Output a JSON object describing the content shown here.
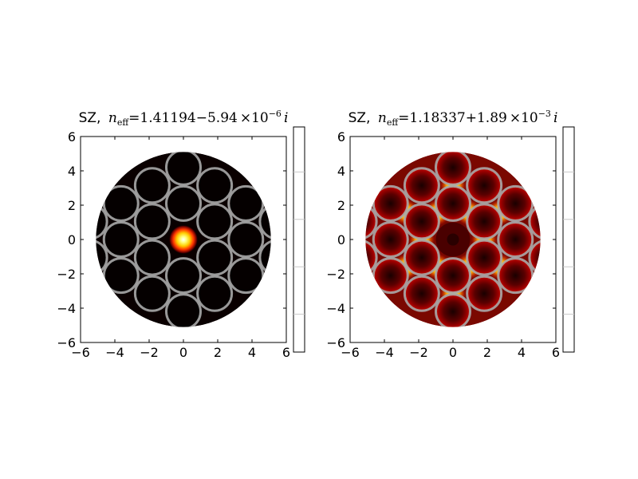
{
  "chart_data": [
    {
      "type": "heatmap",
      "title_prefix": "SZ,",
      "title_neff": "n",
      "title_neff_sub": "eff",
      "title_equals": "=",
      "title_real": "1.41194",
      "title_sign": "−",
      "title_imag": "5.94",
      "title_times": "×10",
      "title_exp": "−6",
      "title_i": "i",
      "xlabel": "",
      "ylabel": "",
      "xlim": [
        -6,
        6
      ],
      "ylim": [
        -6,
        6
      ],
      "xticks": [
        "−6",
        "−4",
        "−2",
        "0",
        "2",
        "4",
        "6"
      ],
      "yticks": [
        "6",
        "4",
        "2",
        "0",
        "−2",
        "−4",
        "−6"
      ],
      "domain_radius": 5.1,
      "capillary_radius": 1.0,
      "capillary_centers": [
        [
          0,
          2.1
        ],
        [
          1.82,
          1.05
        ],
        [
          1.82,
          -1.05
        ],
        [
          0,
          -2.1
        ],
        [
          -1.82,
          -1.05
        ],
        [
          -1.82,
          1.05
        ],
        [
          0,
          4.2
        ],
        [
          3.64,
          2.1
        ],
        [
          3.64,
          -2.1
        ],
        [
          0,
          -4.2
        ],
        [
          -3.64,
          -2.1
        ],
        [
          -3.64,
          2.1
        ],
        [
          1.82,
          3.15
        ],
        [
          3.64,
          0
        ],
        [
          1.82,
          -3.15
        ],
        [
          -1.82,
          -3.15
        ],
        [
          -3.64,
          0
        ],
        [
          -1.82,
          3.15
        ],
        [
          5.46,
          1.05
        ],
        [
          -5.46,
          1.05
        ],
        [
          5.46,
          -1.05
        ],
        [
          -5.46,
          -1.05
        ]
      ],
      "field_mode": "core",
      "colorbar_ticks": 4
    },
    {
      "type": "heatmap",
      "title_prefix": "SZ,",
      "title_neff": "n",
      "title_neff_sub": "eff",
      "title_equals": "=",
      "title_real": "1.18337",
      "title_sign": "+",
      "title_imag": "1.89",
      "title_times": "×10",
      "title_exp": "−3",
      "title_i": "i",
      "xlabel": "",
      "ylabel": "",
      "xlim": [
        -6,
        6
      ],
      "ylim": [
        -6,
        6
      ],
      "xticks": [
        "−6",
        "−4",
        "−2",
        "0",
        "2",
        "4",
        "6"
      ],
      "yticks": [
        "6",
        "4",
        "2",
        "0",
        "−2",
        "−4",
        "−6"
      ],
      "domain_radius": 5.1,
      "capillary_radius": 1.0,
      "capillary_centers": [
        [
          0,
          2.1
        ],
        [
          1.82,
          1.05
        ],
        [
          1.82,
          -1.05
        ],
        [
          0,
          -2.1
        ],
        [
          -1.82,
          -1.05
        ],
        [
          -1.82,
          1.05
        ],
        [
          0,
          4.2
        ],
        [
          3.64,
          2.1
        ],
        [
          3.64,
          -2.1
        ],
        [
          0,
          -4.2
        ],
        [
          -3.64,
          -2.1
        ],
        [
          -3.64,
          2.1
        ],
        [
          1.82,
          3.15
        ],
        [
          3.64,
          0
        ],
        [
          1.82,
          -3.15
        ],
        [
          -1.82,
          -3.15
        ],
        [
          -3.64,
          0
        ],
        [
          -1.82,
          3.15
        ],
        [
          5.46,
          1.05
        ],
        [
          -5.46,
          1.05
        ],
        [
          5.46,
          -1.05
        ],
        [
          -5.46,
          -1.05
        ]
      ],
      "field_mode": "cladding",
      "colorbar_ticks": 4
    }
  ]
}
